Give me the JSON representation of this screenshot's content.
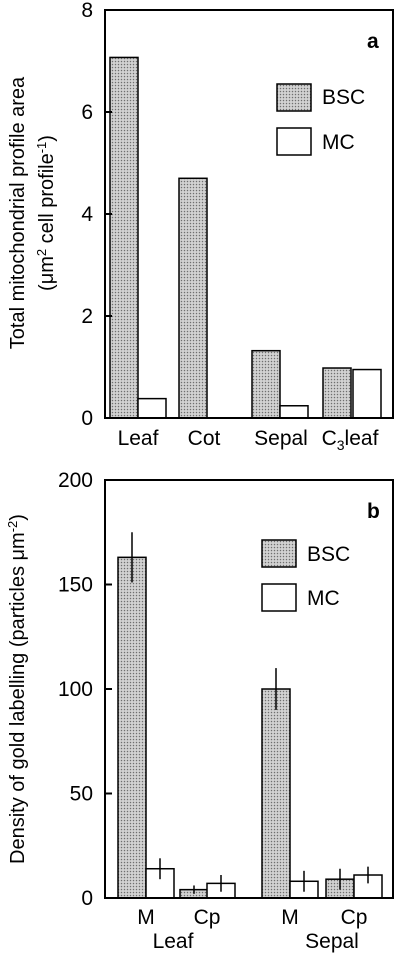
{
  "colors": {
    "bsc_fill": "#b9b9b9",
    "mc_fill": "#ffffff",
    "axis": "#000000"
  },
  "chart_data": [
    {
      "type": "bar",
      "panel_label": "a",
      "ylabel_line1": "Total mitochondrial profile area",
      "ylabel_line2_prefix": "(μm",
      "ylabel_line2_sup1": "2",
      "ylabel_line2_mid": " cell profile",
      "ylabel_line2_sup2": "-1",
      "ylabel_line2_suffix": ")",
      "ylim": [
        0,
        8
      ],
      "yticks": [
        "0",
        "2",
        "4",
        "6",
        "8"
      ],
      "categories": [
        "Leaf",
        "Cot",
        "Sepal",
        "C3leaf"
      ],
      "category_labels": [
        {
          "main": "Leaf"
        },
        {
          "main": "Cot"
        },
        {
          "main": "Sepal"
        },
        {
          "main": "C",
          "sub": "3",
          "rest": "leaf"
        }
      ],
      "legend": {
        "position": "top-right",
        "entries": [
          "BSC",
          "MC"
        ]
      },
      "series": [
        {
          "name": "BSC",
          "values": [
            7.07,
            4.7,
            1.32,
            0.98
          ]
        },
        {
          "name": "MC",
          "values": [
            0.38,
            null,
            0.24,
            0.95
          ]
        }
      ]
    },
    {
      "type": "bar",
      "panel_label": "b",
      "ylabel_line1": "Density of gold labelling (particles μm",
      "ylabel_sup": "-2",
      "ylabel_suffix": ")",
      "ylim": [
        0,
        200
      ],
      "yticks": [
        "0",
        "50",
        "100",
        "150",
        "200"
      ],
      "categories": [
        "M",
        "Cp",
        "M",
        "Cp"
      ],
      "groups": [
        "Leaf",
        "Sepal"
      ],
      "legend": {
        "position": "top-right",
        "entries": [
          "BSC",
          "MC"
        ]
      },
      "series": [
        {
          "name": "BSC",
          "values": [
            163,
            4,
            100,
            9
          ],
          "errors": [
            12,
            2,
            10,
            5
          ]
        },
        {
          "name": "MC",
          "values": [
            14,
            7,
            8,
            11
          ],
          "errors": [
            5,
            4,
            5,
            4
          ]
        }
      ]
    }
  ]
}
